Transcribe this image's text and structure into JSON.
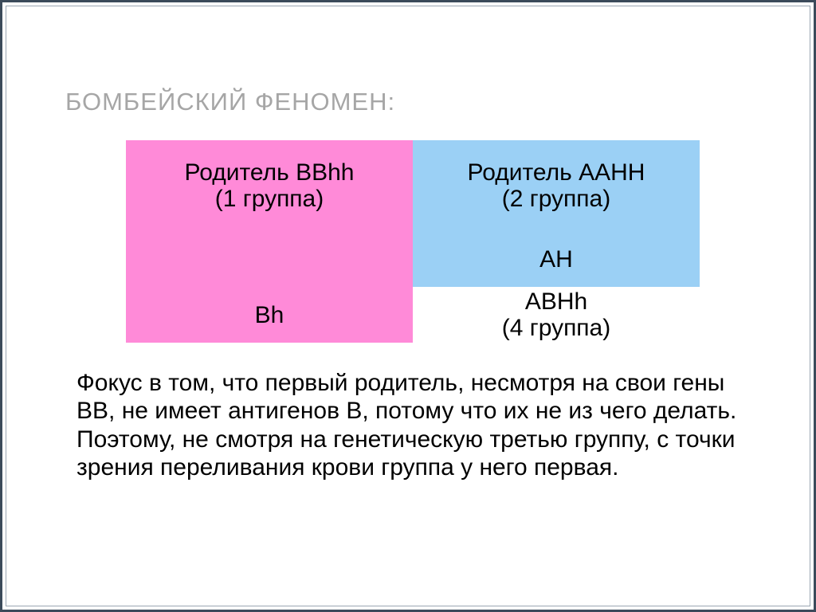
{
  "slide": {
    "title": "БОМБЕЙСКИЙ ФЕНОМЕН:",
    "table": {
      "colors": {
        "pink": "#ff8ad8",
        "blue": "#9bd0f5",
        "white": "#ffffff"
      },
      "cells": {
        "r1c1": "Родитель BBhh\n(1 группа)",
        "r1c2": "Родитель AAHH\n(2 группа)",
        "r2c1": "",
        "r2c2": "AH",
        "r3c1": "Bh",
        "r3c2": "ABHh\n(4 группа)"
      }
    },
    "paragraph": "Фокус в том, что первый родитель, несмотря на свои гены BB, не имеет антигенов B, потому что их не из чего делать. Поэтому, не смотря на генетическую третью группу, с точки зрения переливания крови группа у него первая."
  }
}
